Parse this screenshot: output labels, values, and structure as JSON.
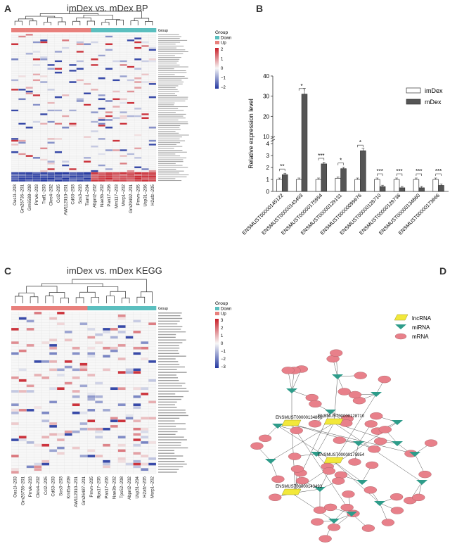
{
  "panelA": {
    "letter": "A",
    "title": "imDex vs. mDex   BP",
    "legend": {
      "group_title": "Group",
      "items": [
        {
          "label": "Down",
          "color": "#5bbfbf"
        },
        {
          "label": "Up",
          "color": "#e8807c"
        }
      ],
      "scale_ticks": [
        "2",
        "1",
        "0",
        "−1",
        "−2"
      ]
    },
    "group_label": "Group",
    "columns": [
      "Oas1l–203",
      "Gm26736–201",
      "Gm6588–208",
      "Pmvk–203",
      "Traf1–203",
      "Ckre4–202",
      "Ccl2–205",
      "AW112010–201",
      "Cd63–203",
      "Sos3–203",
      "Tiam1–204",
      "Abpnl2–202",
      "Nae3b–202",
      "Pan17–206",
      "Mm117–203",
      "Msrp1–202",
      "Gm29492–201",
      "Pmvn–205",
      "Usp31–206",
      "H2afz–205"
    ]
  },
  "panelB": {
    "letter": "B",
    "chart_data": {
      "type": "bar",
      "ylabel": "Relative expression level",
      "ylim": [
        0,
        40
      ],
      "yticks": [
        0,
        1,
        2,
        3,
        4,
        10,
        20,
        30,
        40
      ],
      "categories": [
        "ENSMUST00000145122",
        "ENSMUST00000143493",
        "ENSMUST00000175954",
        "ENSMUST00000129131",
        "ENSMUST00000099676",
        "ENSMUST00000128710",
        "ENSMUST00000129736",
        "ENSMUST00000134860",
        "ENSMUST00000173666"
      ],
      "series": [
        {
          "name": "imDex",
          "values": [
            1.0,
            1.0,
            1.0,
            1.1,
            1.0,
            1.0,
            1.0,
            1.0,
            1.0
          ],
          "color": "#ffffff"
        },
        {
          "name": "mDex",
          "values": [
            1.4,
            31.0,
            2.3,
            1.9,
            3.4,
            0.4,
            0.3,
            0.3,
            0.5
          ],
          "color": "#555555"
        }
      ],
      "significance": [
        "**",
        "*",
        "***",
        "*",
        "*",
        "***",
        "***",
        "***",
        "***"
      ],
      "legend_position": "right"
    }
  },
  "panelC": {
    "letter": "C",
    "title": "imDex vs. mDex   KEGG",
    "legend": {
      "group_title": "Group",
      "items": [
        {
          "label": "Down",
          "color": "#5bbfbf"
        },
        {
          "label": "Up",
          "color": "#e8807c"
        }
      ],
      "scale_ticks": [
        "3",
        "2",
        "1",
        "0",
        "−1",
        "−2",
        "−3"
      ]
    },
    "group_label": "Group",
    "columns": [
      "Oas1l–203",
      "Gm26736–201",
      "Pmvk–203",
      "Ckre4–202",
      "Ccl2–205",
      "Cd63–203",
      "Sos3–203",
      "Kmt5a–209",
      "AW112010–201",
      "Gm26487–201",
      "Pmvn–205",
      "Rps17–205",
      "Pan17–206",
      "Nae3b–202",
      "Tps52–208",
      "Abpnl2–202",
      "Usp31–204",
      "H2afz–205",
      "Msrp1–202"
    ]
  },
  "panelD": {
    "letter": "D",
    "legend": [
      {
        "label": "lncRNA",
        "color": "#f2e83a"
      },
      {
        "label": "miRNA",
        "color": "#2e9c8a"
      },
      {
        "label": "mRNA",
        "color": "#e8808a"
      }
    ],
    "lnc_labels": [
      "ENSMUST00000134860",
      "ENSMUST00000128710",
      "ENSMUST00000175954",
      "ENSMUST00000143493"
    ]
  }
}
